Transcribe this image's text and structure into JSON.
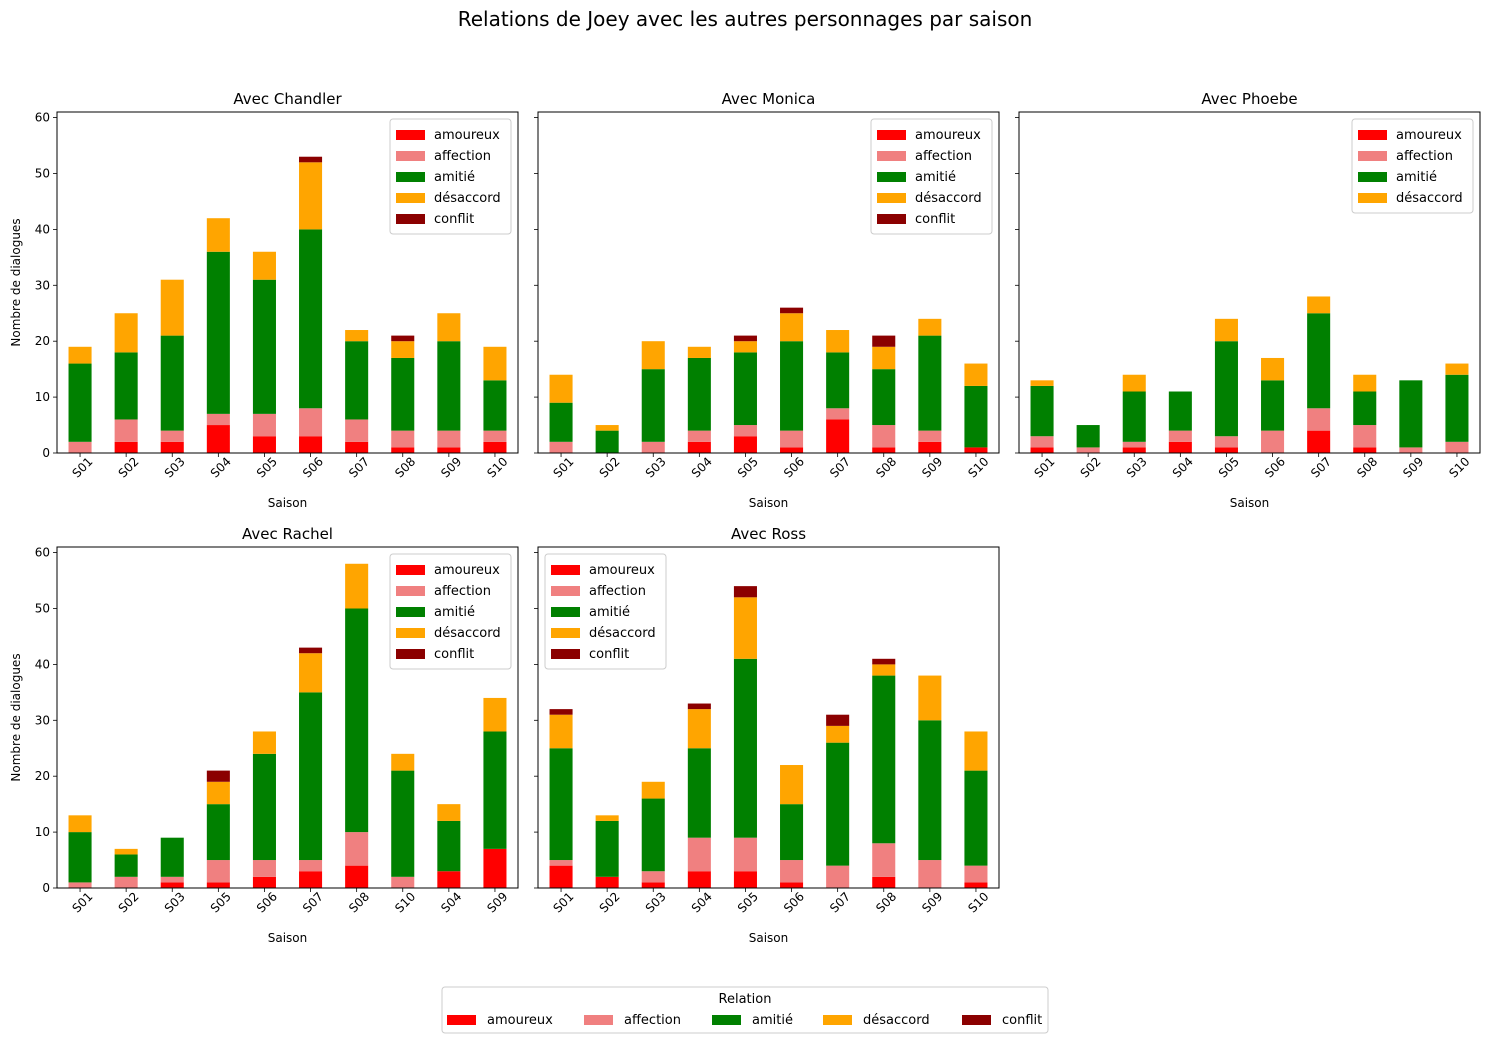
{
  "suptitle": "Relations de Joey avec les autres personnages par saison",
  "colors": {
    "amoureux": "#ff0000",
    "affection": "#f08080",
    "amitié": "#008000",
    "désaccord": "#ffa500",
    "conflit": "#8b0000"
  },
  "figure_legend": {
    "title": "Relation",
    "entries": [
      "amoureux",
      "affection",
      "amitié",
      "désaccord",
      "conflit"
    ]
  },
  "chart_data": [
    {
      "type": "bar",
      "stacked": true,
      "title": "Avec Chandler",
      "xlabel": "Saison",
      "ylabel": "Nombre de dialogues",
      "ylim": [
        0,
        61
      ],
      "yticks": [
        0,
        10,
        20,
        30,
        40,
        50,
        60
      ],
      "legend_position": "upper right",
      "categories": [
        "S01",
        "S02",
        "S03",
        "S04",
        "S05",
        "S06",
        "S07",
        "S08",
        "S09",
        "S10"
      ],
      "series": [
        {
          "name": "amoureux",
          "values": [
            0,
            2,
            2,
            5,
            3,
            3,
            2,
            1,
            1,
            2
          ]
        },
        {
          "name": "affection",
          "values": [
            2,
            4,
            2,
            2,
            4,
            5,
            4,
            3,
            3,
            2
          ]
        },
        {
          "name": "amitié",
          "values": [
            14,
            12,
            17,
            29,
            24,
            32,
            14,
            13,
            16,
            9
          ]
        },
        {
          "name": "désaccord",
          "values": [
            3,
            7,
            10,
            6,
            5,
            12,
            2,
            3,
            5,
            6
          ]
        },
        {
          "name": "conflit",
          "values": [
            0,
            0,
            0,
            0,
            0,
            1,
            0,
            1,
            0,
            0
          ]
        }
      ]
    },
    {
      "type": "bar",
      "stacked": true,
      "title": "Avec Monica",
      "xlabel": "Saison",
      "ylabel": "",
      "ylim": [
        0,
        61
      ],
      "yticks": [
        0,
        10,
        20,
        30,
        40,
        50,
        60
      ],
      "legend_position": "upper right",
      "categories": [
        "S01",
        "S02",
        "S03",
        "S04",
        "S05",
        "S06",
        "S07",
        "S08",
        "S09",
        "S10"
      ],
      "series": [
        {
          "name": "amoureux",
          "values": [
            0,
            0,
            0,
            2,
            3,
            1,
            6,
            1,
            2,
            1
          ]
        },
        {
          "name": "affection",
          "values": [
            2,
            0,
            2,
            2,
            2,
            3,
            2,
            4,
            2,
            0
          ]
        },
        {
          "name": "amitié",
          "values": [
            7,
            4,
            13,
            13,
            13,
            16,
            10,
            10,
            17,
            11
          ]
        },
        {
          "name": "désaccord",
          "values": [
            5,
            1,
            5,
            2,
            2,
            5,
            4,
            4,
            3,
            4
          ]
        },
        {
          "name": "conflit",
          "values": [
            0,
            0,
            0,
            0,
            1,
            1,
            0,
            2,
            0,
            0
          ]
        }
      ]
    },
    {
      "type": "bar",
      "stacked": true,
      "title": "Avec Phoebe",
      "xlabel": "Saison",
      "ylabel": "",
      "ylim": [
        0,
        61
      ],
      "yticks": [
        0,
        10,
        20,
        30,
        40,
        50,
        60
      ],
      "legend_position": "upper right",
      "categories": [
        "S01",
        "S02",
        "S03",
        "S04",
        "S05",
        "S06",
        "S07",
        "S08",
        "S09",
        "S10"
      ],
      "series": [
        {
          "name": "amoureux",
          "values": [
            1,
            0,
            1,
            2,
            1,
            0,
            4,
            1,
            0,
            0
          ]
        },
        {
          "name": "affection",
          "values": [
            2,
            1,
            1,
            2,
            2,
            4,
            4,
            4,
            1,
            2
          ]
        },
        {
          "name": "amitié",
          "values": [
            9,
            4,
            9,
            7,
            17,
            9,
            17,
            6,
            12,
            12
          ]
        },
        {
          "name": "désaccord",
          "values": [
            1,
            0,
            3,
            0,
            4,
            4,
            3,
            3,
            0,
            2
          ]
        }
      ]
    },
    {
      "type": "bar",
      "stacked": true,
      "title": "Avec Rachel",
      "xlabel": "Saison",
      "ylabel": "Nombre de dialogues",
      "ylim": [
        0,
        61
      ],
      "yticks": [
        0,
        10,
        20,
        30,
        40,
        50,
        60
      ],
      "legend_position": "upper right",
      "categories": [
        "S01",
        "S02",
        "S03",
        "S05",
        "S06",
        "S07",
        "S08",
        "S10",
        "S04",
        "S09"
      ],
      "series": [
        {
          "name": "amoureux",
          "values": [
            0,
            0,
            1,
            1,
            2,
            3,
            4,
            0,
            3,
            7
          ]
        },
        {
          "name": "affection",
          "values": [
            1,
            2,
            1,
            4,
            3,
            2,
            6,
            2,
            0,
            0
          ]
        },
        {
          "name": "amitié",
          "values": [
            9,
            4,
            7,
            10,
            19,
            30,
            40,
            19,
            9,
            21
          ]
        },
        {
          "name": "désaccord",
          "values": [
            3,
            1,
            0,
            4,
            4,
            7,
            8,
            3,
            3,
            6
          ]
        },
        {
          "name": "conflit",
          "values": [
            0,
            0,
            0,
            2,
            0,
            1,
            0,
            0,
            0,
            0
          ]
        }
      ]
    },
    {
      "type": "bar",
      "stacked": true,
      "title": "Avec Ross",
      "xlabel": "Saison",
      "ylabel": "",
      "ylim": [
        0,
        61
      ],
      "yticks": [
        0,
        10,
        20,
        30,
        40,
        50,
        60
      ],
      "legend_position": "upper left",
      "categories": [
        "S01",
        "S02",
        "S03",
        "S04",
        "S05",
        "S06",
        "S07",
        "S08",
        "S09",
        "S10"
      ],
      "series": [
        {
          "name": "amoureux",
          "values": [
            4,
            2,
            1,
            3,
            3,
            1,
            0,
            2,
            0,
            1
          ]
        },
        {
          "name": "affection",
          "values": [
            1,
            0,
            2,
            6,
            6,
            4,
            4,
            6,
            5,
            3
          ]
        },
        {
          "name": "amitié",
          "values": [
            20,
            10,
            13,
            16,
            32,
            10,
            22,
            30,
            25,
            17
          ]
        },
        {
          "name": "désaccord",
          "values": [
            6,
            1,
            3,
            7,
            11,
            7,
            3,
            2,
            8,
            7
          ]
        },
        {
          "name": "conflit",
          "values": [
            1,
            0,
            0,
            1,
            2,
            0,
            2,
            1,
            0,
            0
          ]
        }
      ]
    }
  ]
}
